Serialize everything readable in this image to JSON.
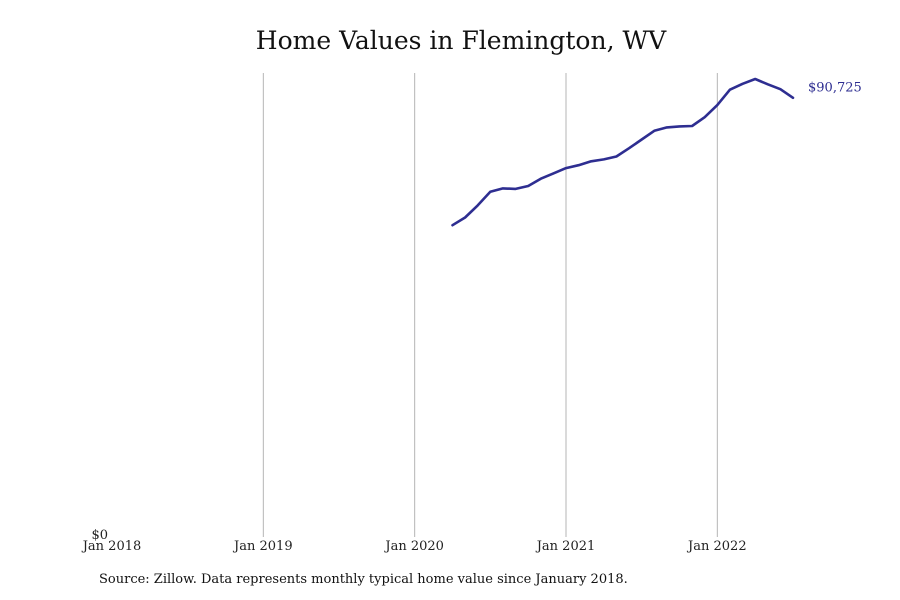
{
  "chart_data": {
    "type": "line",
    "title": "Home Values in Flemington, WV",
    "xlabel": "",
    "ylabel": "",
    "x_ticks": [
      "Jan 2018",
      "Jan 2019",
      "Jan 2020",
      "Jan 2021",
      "Jan 2022"
    ],
    "y_ticks": [
      "$0"
    ],
    "ylim": [
      0,
      93000
    ],
    "xlim": [
      "2018-01",
      "2022-09"
    ],
    "grid": "vertical",
    "line_color": "#2e2e91",
    "series": [
      {
        "end_label": "$90,725",
        "points": [
          {
            "x": "2020-04",
            "y": 64400
          },
          {
            "x": "2020-05",
            "y": 66000
          },
          {
            "x": "2020-06",
            "y": 68500
          },
          {
            "x": "2020-07",
            "y": 71300
          },
          {
            "x": "2020-08",
            "y": 72000
          },
          {
            "x": "2020-09",
            "y": 71900
          },
          {
            "x": "2020-10",
            "y": 72500
          },
          {
            "x": "2020-11",
            "y": 74000
          },
          {
            "x": "2020-12",
            "y": 75100
          },
          {
            "x": "2021-01",
            "y": 76200
          },
          {
            "x": "2021-02",
            "y": 76800
          },
          {
            "x": "2021-03",
            "y": 77600
          },
          {
            "x": "2021-04",
            "y": 78000
          },
          {
            "x": "2021-05",
            "y": 78600
          },
          {
            "x": "2021-06",
            "y": 80300
          },
          {
            "x": "2021-07",
            "y": 82100
          },
          {
            "x": "2021-08",
            "y": 83900
          },
          {
            "x": "2021-09",
            "y": 84600
          },
          {
            "x": "2021-10",
            "y": 84800
          },
          {
            "x": "2021-11",
            "y": 84900
          },
          {
            "x": "2021-12",
            "y": 86700
          },
          {
            "x": "2022-01",
            "y": 89200
          },
          {
            "x": "2022-02",
            "y": 92400
          },
          {
            "x": "2022-03",
            "y": 93600
          },
          {
            "x": "2022-04",
            "y": 94600
          },
          {
            "x": "2022-05",
            "y": 93500
          },
          {
            "x": "2022-06",
            "y": 92500
          },
          {
            "x": "2022-07",
            "y": 90725
          }
        ]
      }
    ]
  },
  "source_note": "Source: Zillow. Data represents monthly typical home value since January 2018."
}
